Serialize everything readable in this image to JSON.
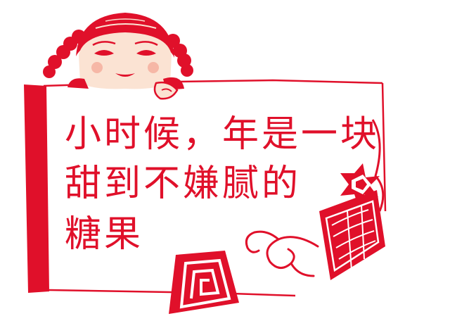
{
  "card": {
    "lines": [
      "小时候，年是一块",
      "甜到不嫌腻的",
      "糖果"
    ]
  },
  "colors": {
    "accent": "#e0102a",
    "paper": "#ffffff",
    "skin": "#fbe3d3"
  },
  "illustration": {
    "figure": "papercut-girl-holding-sign",
    "ornaments": [
      "swirl-scroll",
      "diamond-lozenge",
      "square-spiral-knot",
      "star-burst"
    ]
  }
}
